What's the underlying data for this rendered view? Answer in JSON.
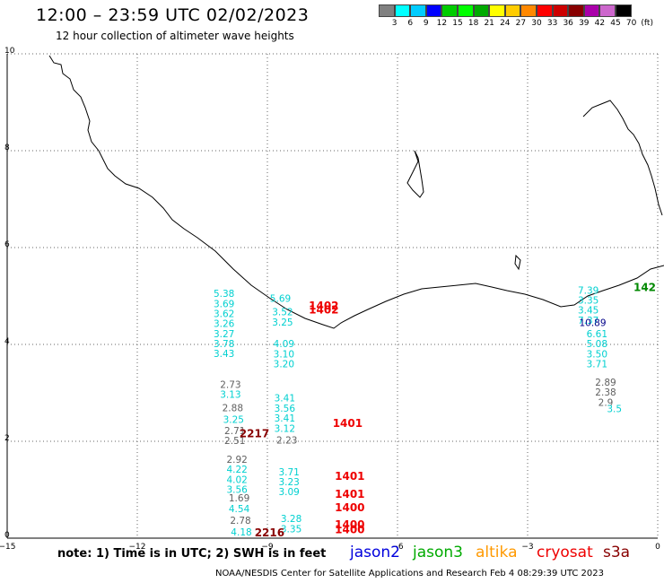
{
  "header": {
    "title": "12:00 – 23:59 UTC 02/02/2023",
    "subtitle": "12 hour collection of altimeter wave heights"
  },
  "colorbar": {
    "colors": [
      "#808080",
      "#00ffff",
      "#00ccff",
      "#0000ff",
      "#00cc00",
      "#00ff00",
      "#00aa00",
      "#ffff00",
      "#ffcc00",
      "#ff8800",
      "#ff0000",
      "#cc0000",
      "#880000",
      "#aa00aa",
      "#cc66cc",
      "#000000"
    ],
    "labels": [
      "3",
      "6",
      "9",
      "12",
      "15",
      "18",
      "21",
      "24",
      "27",
      "30",
      "33",
      "36",
      "39",
      "42",
      "45",
      "70",
      "(ft)"
    ]
  },
  "axes": {
    "x_ticks": [
      "−15",
      "−12",
      "−9",
      "−6",
      "−3",
      "0"
    ],
    "y_ticks": [
      "0",
      "2",
      "4",
      "6",
      "8",
      "10"
    ],
    "xlim": [
      -15,
      0
    ],
    "ylim": [
      0,
      10
    ]
  },
  "passes": [
    {
      "color": "#00d0d0",
      "x": -10.0,
      "y_start": 4.98,
      "values": [
        "5.38",
        "3.69",
        "3.62",
        "3.26",
        "3.27",
        "3.78",
        "3.43"
      ]
    },
    {
      "color": "#606060",
      "x": -9.85,
      "y_start": 3.1,
      "values": [
        "2.73"
      ]
    },
    {
      "color": "#00d0d0",
      "x": -9.85,
      "y_start": 2.9,
      "values": [
        "3.13"
      ]
    },
    {
      "color": "#606060",
      "x": -9.8,
      "y_start": 2.62,
      "values": [
        "2.88"
      ]
    },
    {
      "color": "#00d0d0",
      "x": -9.78,
      "y_start": 2.38,
      "values": [
        "3.25"
      ]
    },
    {
      "color": "#606060",
      "x": -9.75,
      "y_start": 2.15,
      "values": [
        "2.71",
        "2.51"
      ]
    },
    {
      "color": "#606060",
      "x": -9.7,
      "y_start": 1.56,
      "values": [
        "2.92"
      ]
    },
    {
      "color": "#00d0d0",
      "x": -9.7,
      "y_start": 1.35,
      "values": [
        "4.22",
        "4.02",
        "3.56"
      ]
    },
    {
      "color": "#606060",
      "x": -9.65,
      "y_start": 0.76,
      "values": [
        "1.69"
      ]
    },
    {
      "color": "#00d0d0",
      "x": -9.65,
      "y_start": 0.54,
      "values": [
        "4.54"
      ]
    },
    {
      "color": "#606060",
      "x": -9.62,
      "y_start": 0.3,
      "values": [
        "2.78"
      ]
    },
    {
      "color": "#00d0d0",
      "x": -9.6,
      "y_start": 0.06,
      "values": [
        "4.18"
      ]
    },
    {
      "color": "#00d0d0",
      "x": -8.7,
      "y_start": 4.88,
      "values": [
        "5.69"
      ]
    },
    {
      "color": "#00d0d0",
      "x": -8.65,
      "y_start": 4.6,
      "values": [
        "3.52",
        "3.25"
      ]
    },
    {
      "color": "#00d0d0",
      "x": -8.62,
      "y_start": 3.94,
      "values": [
        "4.09",
        "3.10",
        "3.20"
      ]
    },
    {
      "color": "#00d0d0",
      "x": -8.6,
      "y_start": 2.82,
      "values": [
        "3.41",
        "3.56",
        "3.41",
        "3.12"
      ]
    },
    {
      "color": "#606060",
      "x": -8.55,
      "y_start": 1.95,
      "values": [
        "2.23"
      ]
    },
    {
      "color": "#00d0d0",
      "x": -8.5,
      "y_start": 1.3,
      "values": [
        "3.71",
        "3.23",
        "3.09"
      ]
    },
    {
      "color": "#00d0d0",
      "x": -8.45,
      "y_start": 0.33,
      "values": [
        "3.28",
        "3.35"
      ]
    },
    {
      "color": "#00d0d0",
      "x": -1.6,
      "y_start": 5.05,
      "values": [
        "7.39",
        "3.35",
        "3.45",
        "7.37"
      ]
    },
    {
      "color": "#000088",
      "x": -1.5,
      "y_start": 4.38,
      "values": [
        "10.89"
      ]
    },
    {
      "color": "#00d0d0",
      "x": -1.4,
      "y_start": 4.15,
      "values": [
        "6.61",
        "5.08",
        "3.50",
        "3.71"
      ]
    },
    {
      "color": "#606060",
      "x": -1.2,
      "y_start": 3.15,
      "values": [
        "2.89",
        "2.38",
        "2.9"
      ]
    },
    {
      "color": "#00d0d0",
      "x": -1.0,
      "y_start": 2.6,
      "values": [
        "3.5"
      ]
    }
  ],
  "time_labels": [
    {
      "text": "1402",
      "color": "#ee0000",
      "x": -7.7,
      "y": 4.72
    },
    {
      "text": "1402",
      "color": "#ee0000",
      "x": -7.7,
      "y": 4.64
    },
    {
      "text": "1401",
      "color": "#ee0000",
      "x": -7.15,
      "y": 2.3
    },
    {
      "text": "1401",
      "color": "#ee0000",
      "x": -7.1,
      "y": 1.2
    },
    {
      "text": "1401",
      "color": "#ee0000",
      "x": -7.1,
      "y": 0.83
    },
    {
      "text": "1400",
      "color": "#ee0000",
      "x": -7.1,
      "y": 0.56
    },
    {
      "text": "1400",
      "color": "#ee0000",
      "x": -7.1,
      "y": 0.2
    },
    {
      "text": "1400",
      "color": "#ee0000",
      "x": -7.1,
      "y": 0.1
    },
    {
      "text": "2217",
      "color": "#880000",
      "x": -9.3,
      "y": 2.08
    },
    {
      "text": "2216",
      "color": "#880000",
      "x": -8.95,
      "y": 0.04
    },
    {
      "text": "142",
      "color": "#008800",
      "x": -0.3,
      "y": 5.1
    }
  ],
  "note": "note:  1) Time is in UTC;  2) SWH is in feet",
  "legend": [
    {
      "label": "jason2",
      "color": "#0000dd"
    },
    {
      "label": "jason3",
      "color": "#00aa00"
    },
    {
      "label": "altika",
      "color": "#ff9900"
    },
    {
      "label": "cryosat",
      "color": "#ee0000"
    },
    {
      "label": "s3a",
      "color": "#880000"
    }
  ],
  "credit": "NOAA/NESDIS Center for Satellite Applications and Research    Feb  4 08:29:39 UTC 2023"
}
